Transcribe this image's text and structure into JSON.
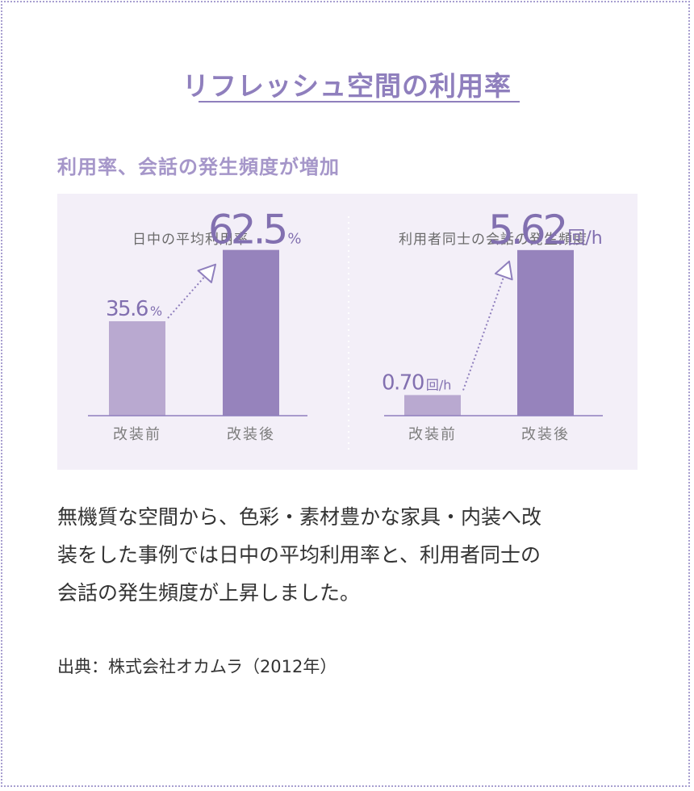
{
  "title": "リフレッシュ空間の利用率",
  "subtitle": "利用率、会話の発生頻度が増加",
  "body_lines": [
    "無機質な空間から、色彩・素材豊かな家具・内装へ改",
    "装をした事例では日中の平均利用率と、利用者同士の",
    "会話の発生頻度が上昇しました。"
  ],
  "source": "出典：株式会社オカムラ（2012年）",
  "colors": {
    "accent": "#8f7fbd",
    "bar_before": "#b9a9d0",
    "bar_after": "#9683bc",
    "value_text": "#8270b0",
    "panel_bg": "#f3eff8"
  },
  "chart_data": [
    {
      "type": "bar",
      "title": "日中の平均利用率",
      "categories": [
        "改装前",
        "改装後"
      ],
      "values": [
        35.6,
        62.5
      ],
      "value_labels": [
        "35.6",
        "62.5"
      ],
      "unit": "%",
      "ylim": [
        0,
        70
      ]
    },
    {
      "type": "bar",
      "title": "利用者同士の会話の発生頻度",
      "categories": [
        "改装前",
        "改装後"
      ],
      "values": [
        0.7,
        5.62
      ],
      "value_labels": [
        "0.70",
        "5.62"
      ],
      "unit": "回/h",
      "ylim": [
        0,
        6.3
      ]
    }
  ]
}
